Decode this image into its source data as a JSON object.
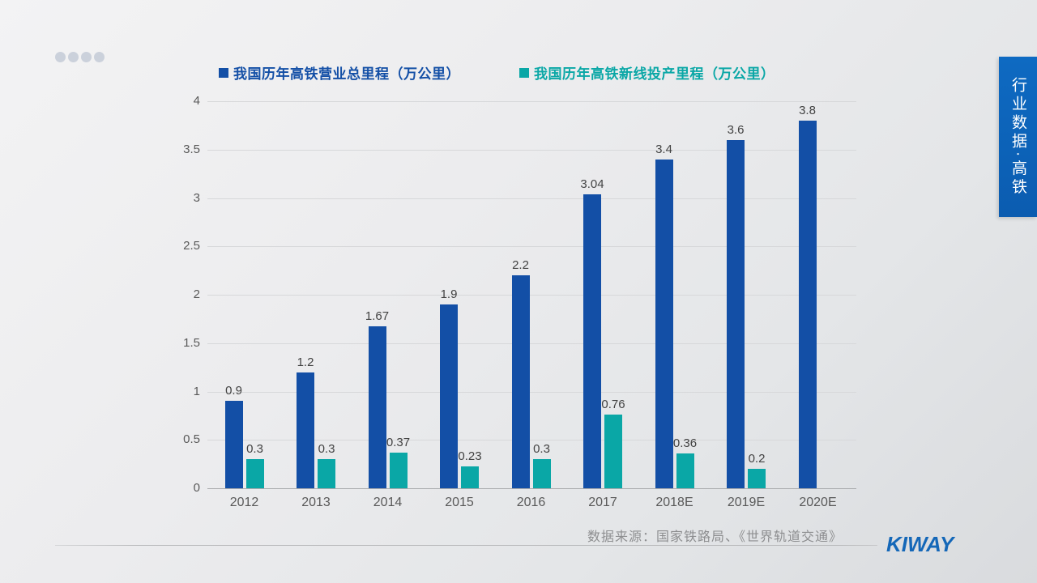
{
  "slide": {
    "side_tab_label": "行业数据·高铁",
    "source_text": "数据来源：国家铁路局、《世界轨道交通》",
    "logo_text": "KIWAY"
  },
  "legend": [
    {
      "label": "我国历年高铁营业总里程（万公里）",
      "color": "#134fa6"
    },
    {
      "label": "我国历年高铁新线投产里程（万公里）",
      "color": "#0aa7a6"
    }
  ],
  "colors": {
    "bar_blue": "#134fa6",
    "bar_teal": "#0aa7a6",
    "tab_blue": "#0e6ac2",
    "grid": "#d7d8da",
    "axis_baseline": "#a9abad",
    "label_gray": "#424242"
  },
  "chart_data": {
    "type": "bar",
    "title": "",
    "xlabel": "",
    "ylabel": "",
    "categories": [
      "2012",
      "2013",
      "2014",
      "2015",
      "2016",
      "2017",
      "2018E",
      "2019E",
      "2020E"
    ],
    "series": [
      {
        "name": "我国历年高铁营业总里程（万公里）",
        "color": "#134fa6",
        "values": [
          0.9,
          1.2,
          1.67,
          1.9,
          2.2,
          3.04,
          3.4,
          3.6,
          3.8
        ]
      },
      {
        "name": "我国历年高铁新线投产里程（万公里）",
        "color": "#0aa7a6",
        "values": [
          0.3,
          0.3,
          0.37,
          0.23,
          0.3,
          0.76,
          0.36,
          0.2,
          null
        ]
      }
    ],
    "ylim": [
      0,
      4
    ],
    "yticks": [
      0,
      0.5,
      1,
      1.5,
      2,
      2.5,
      3,
      3.5,
      4
    ],
    "grid": true,
    "legend_position": "top",
    "data_labels": true
  }
}
